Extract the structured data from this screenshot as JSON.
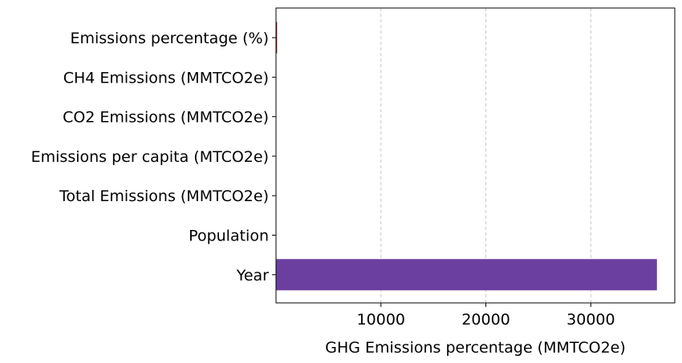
{
  "chart_data": {
    "type": "bar",
    "orientation": "horizontal",
    "title": "",
    "xlabel": "GHG Emissions percentage (MMTCO2e)",
    "ylabel": "",
    "categories": [
      "Emissions percentage (%)",
      "CH4 Emissions (MMTCO2e)",
      "CO2 Emissions (MMTCO2e)",
      "Emissions per capita (MTCO2e)",
      "Total Emissions (MMTCO2e)",
      "Population",
      "Year"
    ],
    "values": [
      100,
      0,
      0,
      0,
      0,
      0,
      36300
    ],
    "bar_colors": [
      "#8b1a1a",
      "#6b3fa0",
      "#6b3fa0",
      "#6b3fa0",
      "#6b3fa0",
      "#6b3fa0",
      "#6b3fa0"
    ],
    "xlim": [
      0,
      38000
    ],
    "xticks": [
      10000,
      20000,
      30000
    ],
    "xtick_labels": [
      "10000",
      "20000",
      "30000"
    ],
    "grid": "x-dashed",
    "legend": "none"
  }
}
